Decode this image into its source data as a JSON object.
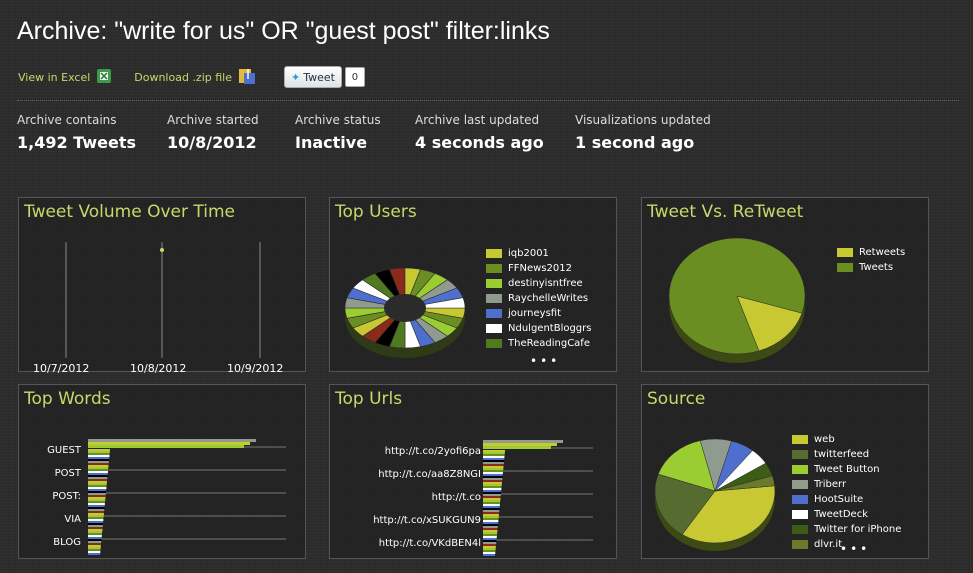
{
  "header": {
    "title": "Archive: \"write for us\" OR \"guest post\" filter:links",
    "view_excel": "View in Excel",
    "download_zip": "Download .zip file",
    "tweet_button": "Tweet",
    "tweet_count": "0"
  },
  "stats": [
    {
      "label": "Archive contains",
      "value": "1,492 Tweets"
    },
    {
      "label": "Archive started",
      "value": "10/8/2012"
    },
    {
      "label": "Archive status",
      "value": "Inactive"
    },
    {
      "label": "Archive last updated",
      "value": "4 seconds ago"
    },
    {
      "label": "Visualizations updated",
      "value": "1 second ago"
    }
  ],
  "panels": {
    "volume": {
      "title": "Tweet Volume Over Time"
    },
    "users": {
      "title": "Top Users"
    },
    "retweet": {
      "title": "Tweet Vs. ReTweet"
    },
    "words": {
      "title": "Top Words"
    },
    "urls": {
      "title": "Top Urls"
    },
    "source": {
      "title": "Source"
    }
  },
  "chart_data": [
    {
      "type": "line",
      "title": "Tweet Volume Over Time",
      "categories": [
        "10/7/2012",
        "10/8/2012",
        "10/9/2012"
      ],
      "series": [
        {
          "values": [
            0,
            1492,
            0
          ]
        }
      ]
    },
    {
      "type": "pie",
      "title": "Top Users",
      "legend": [
        "iqb2001",
        "FFNews2012",
        "destinyisntfree",
        "RaychelleWrites",
        "journeysfit",
        "NdulgentBloggrs",
        "TheReadingCafe"
      ],
      "colors": [
        "#c8c832",
        "#6b8e23",
        "#9acd32",
        "#8f9b8f",
        "#4f6fcf",
        "#ffffff",
        "#4f7a1f"
      ]
    },
    {
      "type": "pie",
      "title": "Tweet Vs. ReTweet",
      "legend": [
        "Retweets",
        "Tweets"
      ],
      "values": [
        15,
        85
      ],
      "colors": [
        "#c8c832",
        "#6b8e23"
      ]
    },
    {
      "type": "bar",
      "title": "Top Words",
      "categories": [
        "GUEST",
        "POST",
        "POST:",
        "VIA",
        "BLOG"
      ]
    },
    {
      "type": "bar",
      "title": "Top Urls",
      "categories": [
        "http://t.co/2yofi6pa",
        "http://t.co/aa8Z8NGI",
        "http://t.co",
        "http://t.co/xSUKGUN9",
        "http://t.co/VKdBEN4l"
      ]
    },
    {
      "type": "pie",
      "title": "Source",
      "legend": [
        "web",
        "twitterfeed",
        "Tweet Button",
        "Triberr",
        "HootSuite",
        "TweetDeck",
        "Twitter for iPhone",
        "dlvr.it"
      ],
      "values": [
        34,
        20,
        15,
        8,
        6,
        5,
        4,
        3
      ],
      "colors": [
        "#c8c832",
        "#556b2f",
        "#9acd32",
        "#8f9b8f",
        "#4f6fcf",
        "#ffffff",
        "#3b5e14",
        "#6b7a2a"
      ]
    }
  ]
}
